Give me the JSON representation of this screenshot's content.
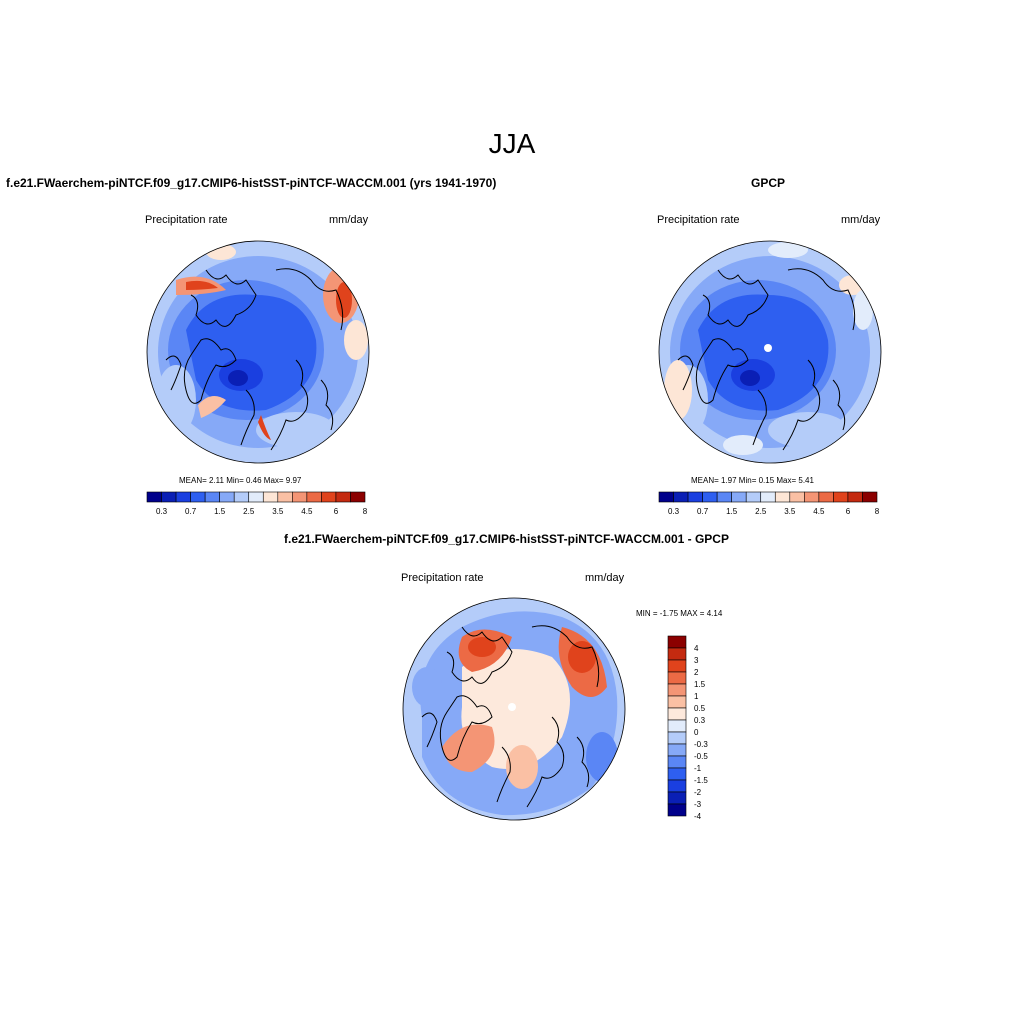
{
  "title": "JJA",
  "colors": {
    "seq": [
      "#00008b",
      "#0a1fb5",
      "#1a3fe0",
      "#2e5ff0",
      "#5a86f5",
      "#86a9f7",
      "#b4ccf9",
      "#e2ecfb",
      "#fde6d6",
      "#fac0a4",
      "#f49575",
      "#ec6a45",
      "#e0431c",
      "#c42a10",
      "#8b0000"
    ],
    "diff": [
      "#00008b",
      "#0a1fb5",
      "#1a3fe0",
      "#2e5ff0",
      "#5a86f5",
      "#86a9f7",
      "#b4ccf9",
      "#e2ecfb",
      "#fde9dc",
      "#fac0a4",
      "#f49575",
      "#ec6a45",
      "#e0431c",
      "#c42a10",
      "#8b0000"
    ]
  },
  "panels": [
    {
      "title": "f.e21.FWaerchem-piNTCF.f09_g17.CMIP6-histSST-piNTCF-WACCM.001 (yrs 1941-1970)",
      "left_label": "Precipitation rate",
      "right_label": "mm/day",
      "stats": "MEAN=   2.11  Min=   0.46  Max=   9.97",
      "colorbar_labels": [
        "0.3",
        "0.7",
        "1.5",
        "2.5",
        "3.5",
        "4.5",
        "6",
        "8"
      ]
    },
    {
      "title": "GPCP",
      "left_label": "Precipitation rate",
      "right_label": "mm/day",
      "stats": "MEAN=   1.97  Min=   0.15  Max=   5.41",
      "colorbar_labels": [
        "0.3",
        "0.7",
        "1.5",
        "2.5",
        "3.5",
        "4.5",
        "6",
        "8"
      ]
    },
    {
      "title": "f.e21.FWaerchem-piNTCF.f09_g17.CMIP6-histSST-piNTCF-WACCM.001 - GPCP",
      "left_label": "Precipitation rate",
      "right_label": "mm/day",
      "stats": "MIN =  -1.75 MAX =   4.14",
      "colorbar_labels": [
        "4",
        "3",
        "2",
        "1.5",
        "1",
        "0.5",
        "0.3",
        "0",
        "-0.3",
        "-0.5",
        "-1",
        "-1.5",
        "-2",
        "-3",
        "-4"
      ]
    }
  ]
}
